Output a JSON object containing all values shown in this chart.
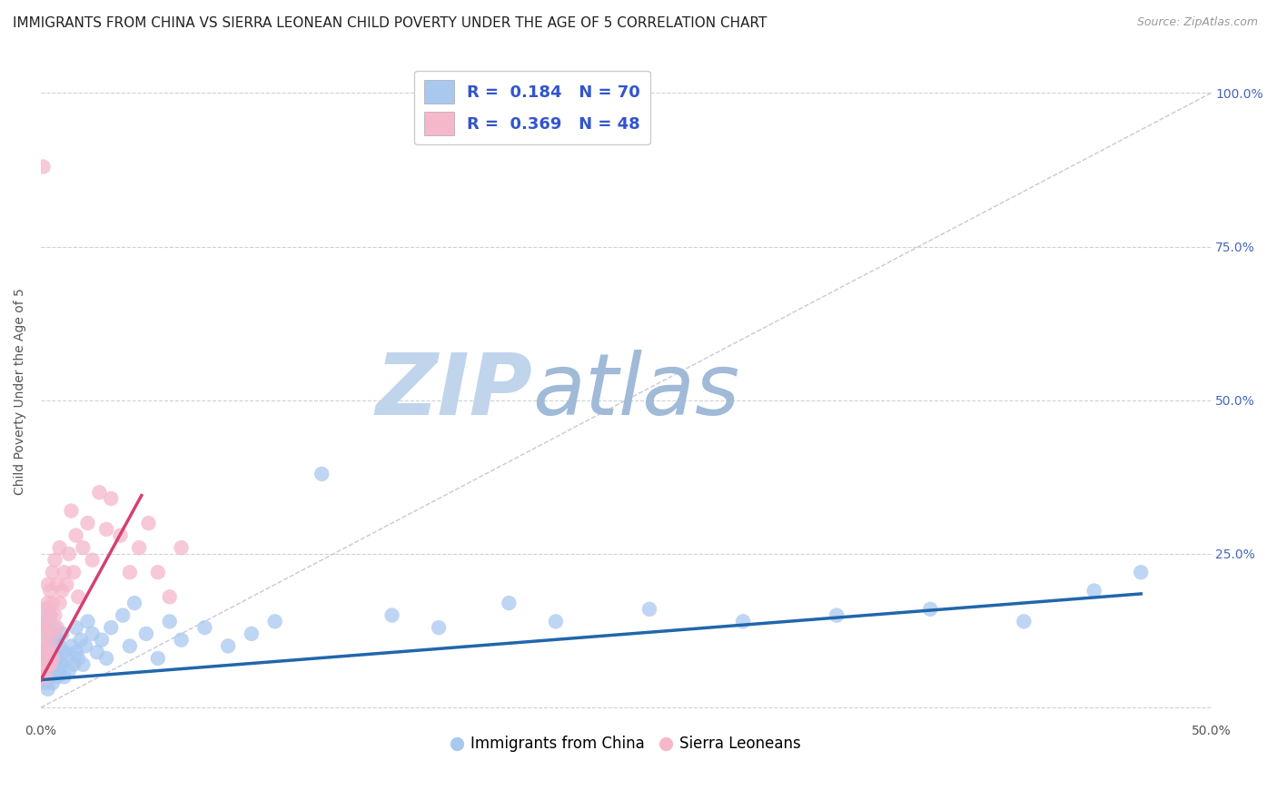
{
  "title": "IMMIGRANTS FROM CHINA VS SIERRA LEONEAN CHILD POVERTY UNDER THE AGE OF 5 CORRELATION CHART",
  "source": "Source: ZipAtlas.com",
  "xlabel_blue": "Immigrants from China",
  "xlabel_pink": "Sierra Leoneans",
  "ylabel": "Child Poverty Under the Age of 5",
  "xlim": [
    0.0,
    0.5
  ],
  "ylim": [
    -0.02,
    1.05
  ],
  "x_ticks": [
    0.0,
    0.1,
    0.2,
    0.3,
    0.4,
    0.5
  ],
  "x_tick_labels": [
    "0.0%",
    "",
    "",
    "",
    "",
    "50.0%"
  ],
  "y_ticks": [
    0.0,
    0.25,
    0.5,
    0.75,
    1.0
  ],
  "y_tick_labels_right": [
    "",
    "25.0%",
    "50.0%",
    "75.0%",
    "100.0%"
  ],
  "R_blue": 0.184,
  "N_blue": 70,
  "R_pink": 0.369,
  "N_pink": 48,
  "blue_color": "#A8C8F0",
  "pink_color": "#F5B8CB",
  "blue_line_color": "#2166AC",
  "pink_line_color": "#D44070",
  "ref_line_color": "#C8C8D8",
  "watermark_zip_color": "#C8D8EE",
  "watermark_atlas_color": "#A8C0DC",
  "title_fontsize": 11,
  "axis_label_fontsize": 10,
  "tick_fontsize": 10,
  "legend_fontsize": 13,
  "blue_scatter_x": [
    0.001,
    0.001,
    0.001,
    0.002,
    0.002,
    0.002,
    0.002,
    0.003,
    0.003,
    0.003,
    0.003,
    0.003,
    0.004,
    0.004,
    0.004,
    0.004,
    0.005,
    0.005,
    0.005,
    0.005,
    0.006,
    0.006,
    0.007,
    0.007,
    0.007,
    0.008,
    0.008,
    0.009,
    0.009,
    0.01,
    0.01,
    0.011,
    0.012,
    0.013,
    0.014,
    0.015,
    0.015,
    0.016,
    0.017,
    0.018,
    0.019,
    0.02,
    0.022,
    0.024,
    0.026,
    0.028,
    0.03,
    0.035,
    0.038,
    0.04,
    0.045,
    0.05,
    0.055,
    0.06,
    0.07,
    0.08,
    0.09,
    0.1,
    0.12,
    0.15,
    0.17,
    0.2,
    0.22,
    0.26,
    0.3,
    0.34,
    0.38,
    0.42,
    0.45,
    0.47
  ],
  "blue_scatter_y": [
    0.05,
    0.08,
    0.12,
    0.06,
    0.09,
    0.14,
    0.04,
    0.07,
    0.1,
    0.13,
    0.03,
    0.16,
    0.05,
    0.08,
    0.11,
    0.15,
    0.06,
    0.09,
    0.12,
    0.04,
    0.07,
    0.13,
    0.05,
    0.08,
    0.11,
    0.06,
    0.1,
    0.07,
    0.12,
    0.05,
    0.09,
    0.08,
    0.06,
    0.1,
    0.07,
    0.09,
    0.13,
    0.08,
    0.11,
    0.07,
    0.1,
    0.14,
    0.12,
    0.09,
    0.11,
    0.08,
    0.13,
    0.15,
    0.1,
    0.17,
    0.12,
    0.08,
    0.14,
    0.11,
    0.13,
    0.1,
    0.12,
    0.14,
    0.38,
    0.15,
    0.13,
    0.17,
    0.14,
    0.16,
    0.14,
    0.15,
    0.16,
    0.14,
    0.19,
    0.22
  ],
  "pink_scatter_x": [
    0.001,
    0.001,
    0.001,
    0.002,
    0.002,
    0.002,
    0.002,
    0.003,
    0.003,
    0.003,
    0.003,
    0.003,
    0.004,
    0.004,
    0.004,
    0.004,
    0.005,
    0.005,
    0.005,
    0.005,
    0.006,
    0.006,
    0.007,
    0.007,
    0.008,
    0.008,
    0.009,
    0.01,
    0.011,
    0.012,
    0.013,
    0.014,
    0.015,
    0.016,
    0.018,
    0.02,
    0.022,
    0.025,
    0.028,
    0.03,
    0.034,
    0.038,
    0.042,
    0.046,
    0.05,
    0.055,
    0.06,
    0.001
  ],
  "pink_scatter_y": [
    0.06,
    0.1,
    0.14,
    0.08,
    0.12,
    0.16,
    0.05,
    0.09,
    0.13,
    0.17,
    0.07,
    0.2,
    0.1,
    0.15,
    0.19,
    0.07,
    0.12,
    0.17,
    0.22,
    0.08,
    0.15,
    0.24,
    0.13,
    0.2,
    0.17,
    0.26,
    0.19,
    0.22,
    0.2,
    0.25,
    0.32,
    0.22,
    0.28,
    0.18,
    0.26,
    0.3,
    0.24,
    0.35,
    0.29,
    0.34,
    0.28,
    0.22,
    0.26,
    0.3,
    0.22,
    0.18,
    0.26,
    0.88
  ],
  "blue_line_x": [
    0.0,
    0.47
  ],
  "blue_line_y": [
    0.045,
    0.185
  ],
  "pink_line_x": [
    0.0,
    0.043
  ],
  "pink_line_y": [
    0.045,
    0.345
  ],
  "ref_line_x": [
    0.0,
    0.5
  ],
  "ref_line_y": [
    0.0,
    1.0
  ]
}
